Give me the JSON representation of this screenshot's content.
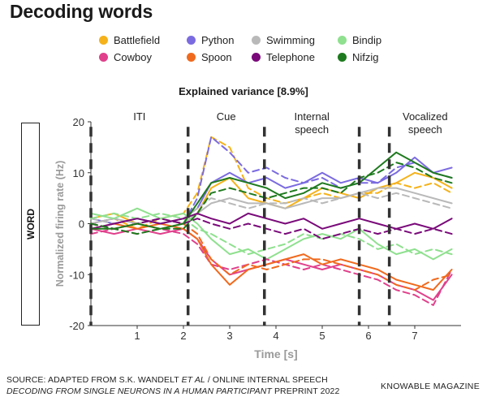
{
  "page": {
    "title": "Decoding words",
    "subtitle_prefix": "Explained variance ",
    "subtitle_value": "[8.9%]",
    "side_label": "WORD",
    "footer_line1_a": "SOURCE: ADAPTED FROM S.K. WANDELT ",
    "footer_line1_b": "ET AL",
    "footer_line1_c": " / ONLINE INTERNAL SPEECH",
    "footer_line2_a": "DECODING FROM SINGLE NEURONS IN A HUMAN PARTICIPANT",
    "footer_line2_b": " PREPRINT 2022",
    "brand": "KNOWABLE MAGAZINE"
  },
  "legend": [
    {
      "name": "Battlefield",
      "color": "#f5b21b"
    },
    {
      "name": "Python",
      "color": "#7b6be0"
    },
    {
      "name": "Swimming",
      "color": "#b9b9b9"
    },
    {
      "name": "Bindip",
      "color": "#8fe08f"
    },
    {
      "name": "Cowboy",
      "color": "#e0408c"
    },
    {
      "name": "Spoon",
      "color": "#f06a1e"
    },
    {
      "name": "Telephone",
      "color": "#7a0a7a"
    },
    {
      "name": "Nifzig",
      "color": "#1e7a1e"
    }
  ],
  "chart_data": {
    "type": "line",
    "title": "Explained variance [8.9%]",
    "xlabel": "Time [s]",
    "ylabel": "Normalized firing rate (Hz)",
    "xlim": [
      0,
      8
    ],
    "ylim": [
      -20,
      20
    ],
    "xticks": [
      1,
      2,
      3,
      4,
      5,
      6,
      7
    ],
    "yticks": [
      20,
      10,
      0,
      -10,
      -20
    ],
    "phases": [
      "ITI",
      "Cue",
      "Internal\nspeech",
      "Vocalized\nspeech"
    ],
    "phase_boundaries": [
      0,
      2.1,
      3.75,
      5.8,
      6.45
    ],
    "grid": false,
    "note": "Values are approximate readings from the plot; each word shown as solid and dashed trace.",
    "series": [
      {
        "name": "Battlefield",
        "color": "#f5b21b",
        "x": [
          0,
          0.5,
          1.0,
          1.5,
          2.0,
          2.3,
          2.6,
          3.0,
          3.4,
          3.8,
          4.2,
          4.6,
          5.0,
          5.4,
          5.8,
          6.2,
          6.6,
          7.0,
          7.4,
          7.8
        ],
        "y_solid": [
          1,
          2,
          0,
          1,
          0,
          2,
          7,
          9,
          5,
          4,
          3,
          5,
          7,
          6,
          5,
          7,
          8,
          10,
          9,
          7
        ],
        "y_dashed": [
          0,
          1,
          -1,
          1,
          2,
          6,
          17,
          15,
          7,
          5,
          4,
          5,
          6,
          5,
          6,
          6,
          8,
          7,
          8,
          6
        ]
      },
      {
        "name": "Python",
        "color": "#7b6be0",
        "x": [
          0,
          0.5,
          1.0,
          1.5,
          2.0,
          2.3,
          2.6,
          3.0,
          3.4,
          3.8,
          4.2,
          4.6,
          5.0,
          5.4,
          5.8,
          6.2,
          6.6,
          7.0,
          7.4,
          7.8
        ],
        "y_solid": [
          1,
          0,
          1,
          0,
          1,
          3,
          8,
          10,
          8,
          9,
          7,
          8,
          10,
          8,
          9,
          8,
          10,
          13,
          10,
          11
        ],
        "y_dashed": [
          0,
          1,
          0,
          1,
          0,
          5,
          17,
          14,
          10,
          11,
          9,
          8,
          9,
          7,
          8,
          8,
          11,
          12,
          10,
          9
        ]
      },
      {
        "name": "Swimming",
        "color": "#b9b9b9",
        "x": [
          0,
          0.5,
          1.0,
          1.5,
          2.0,
          2.3,
          2.6,
          3.0,
          3.4,
          3.8,
          4.2,
          4.6,
          5.0,
          5.4,
          5.8,
          6.2,
          6.6,
          7.0,
          7.4,
          7.8
        ],
        "y_solid": [
          0,
          1,
          0,
          1,
          0,
          2,
          4,
          5,
          4,
          4,
          3,
          4,
          5,
          5,
          6,
          7,
          7,
          6,
          5,
          4
        ],
        "y_dashed": [
          1,
          0,
          1,
          0,
          1,
          3,
          5,
          4,
          3,
          4,
          4,
          5,
          4,
          5,
          6,
          5,
          6,
          5,
          4,
          3
        ]
      },
      {
        "name": "Bindip",
        "color": "#8fe08f",
        "x": [
          0,
          0.5,
          1.0,
          1.5,
          2.0,
          2.3,
          2.6,
          3.0,
          3.4,
          3.8,
          4.2,
          4.6,
          5.0,
          5.4,
          5.8,
          6.2,
          6.6,
          7.0,
          7.4,
          7.8
        ],
        "y_solid": [
          2,
          1,
          3,
          1,
          2,
          0,
          -3,
          -6,
          -5,
          -7,
          -5,
          -3,
          -2,
          -3,
          -1,
          -4,
          -6,
          -5,
          -7,
          -5
        ],
        "y_dashed": [
          1,
          2,
          1,
          2,
          1,
          -1,
          -2,
          -4,
          -6,
          -5,
          -4,
          -2,
          -3,
          -2,
          -3,
          -5,
          -4,
          -6,
          -5,
          -6
        ]
      },
      {
        "name": "Cowboy",
        "color": "#e0408c",
        "x": [
          0,
          0.5,
          1.0,
          1.5,
          2.0,
          2.3,
          2.6,
          3.0,
          3.4,
          3.8,
          4.2,
          4.6,
          5.0,
          5.4,
          5.8,
          6.2,
          6.6,
          7.0,
          7.4,
          7.8
        ],
        "y_solid": [
          -1,
          -2,
          -1,
          -2,
          -1,
          -3,
          -7,
          -10,
          -9,
          -8,
          -7,
          -8,
          -9,
          -8,
          -9,
          -10,
          -12,
          -13,
          -15,
          -10
        ],
        "y_dashed": [
          -2,
          -1,
          -2,
          -1,
          -2,
          -4,
          -8,
          -9,
          -8,
          -7,
          -8,
          -9,
          -8,
          -9,
          -10,
          -11,
          -13,
          -14,
          -16,
          -9
        ]
      },
      {
        "name": "Spoon",
        "color": "#f06a1e",
        "x": [
          0,
          0.5,
          1.0,
          1.5,
          2.0,
          2.3,
          2.6,
          3.0,
          3.4,
          3.8,
          4.2,
          4.6,
          5.0,
          5.4,
          5.8,
          6.2,
          6.6,
          7.0,
          7.4,
          7.8
        ],
        "y_solid": [
          -1,
          0,
          -1,
          0,
          -1,
          -3,
          -8,
          -12,
          -9,
          -8,
          -7,
          -6,
          -8,
          -7,
          -8,
          -9,
          -11,
          -12,
          -13,
          -9
        ],
        "y_dashed": [
          0,
          -1,
          0,
          -1,
          0,
          -2,
          -7,
          -10,
          -8,
          -9,
          -8,
          -7,
          -7,
          -8,
          -9,
          -10,
          -12,
          -13,
          -11,
          -10
        ]
      },
      {
        "name": "Telephone",
        "color": "#7a0a7a",
        "x": [
          0,
          0.5,
          1.0,
          1.5,
          2.0,
          2.3,
          2.6,
          3.0,
          3.4,
          3.8,
          4.2,
          4.6,
          5.0,
          5.4,
          5.8,
          6.2,
          6.6,
          7.0,
          7.4,
          7.8
        ],
        "y_solid": [
          -1,
          0,
          1,
          0,
          1,
          2,
          1,
          0,
          2,
          1,
          0,
          1,
          -1,
          0,
          1,
          0,
          -1,
          0,
          -1,
          1
        ],
        "y_dashed": [
          0,
          -1,
          0,
          1,
          0,
          1,
          0,
          -1,
          0,
          -1,
          -2,
          -1,
          -3,
          -2,
          -1,
          -2,
          -1,
          -2,
          -1,
          -2
        ]
      },
      {
        "name": "Nifzig",
        "color": "#1e7a1e",
        "x": [
          0,
          0.5,
          1.0,
          1.5,
          2.0,
          2.3,
          2.6,
          3.0,
          3.4,
          3.8,
          4.2,
          4.6,
          5.0,
          5.4,
          5.8,
          6.2,
          6.6,
          7.0,
          7.4,
          7.8
        ],
        "y_solid": [
          -1,
          -1,
          0,
          -1,
          0,
          4,
          8,
          9,
          8,
          7,
          5,
          6,
          8,
          7,
          8,
          11,
          14,
          12,
          10,
          9
        ],
        "y_dashed": [
          0,
          -1,
          -2,
          -1,
          -1,
          2,
          6,
          7,
          6,
          5,
          6,
          7,
          7,
          6,
          9,
          10,
          12,
          11,
          9,
          8
        ]
      }
    ]
  }
}
